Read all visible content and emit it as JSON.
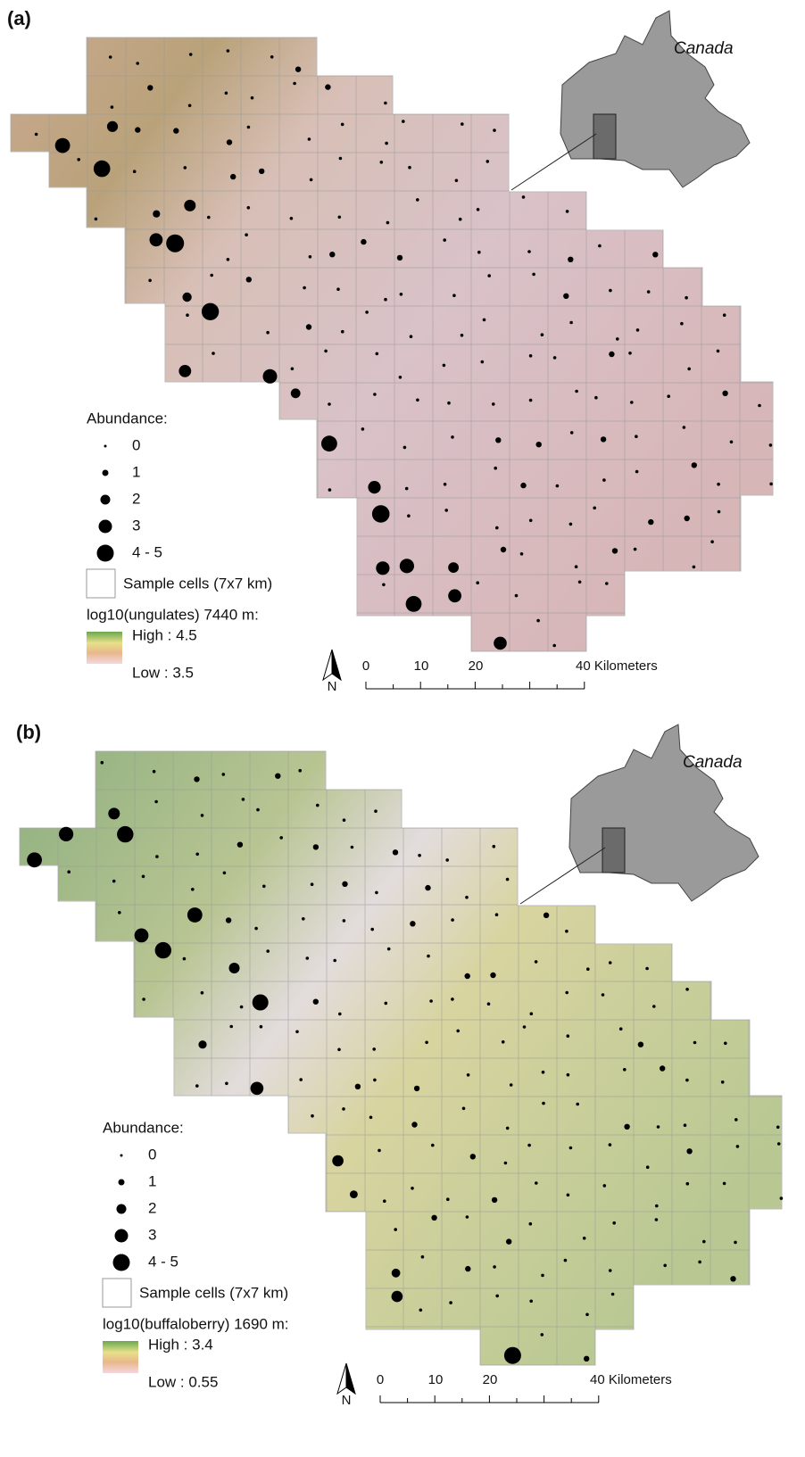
{
  "panels": [
    {
      "label": "(a)",
      "inset_label": "Canada",
      "north": "N",
      "scale": [
        "0",
        "10",
        "20",
        "40 Kilometers"
      ],
      "legend": {
        "title": "Abundance:",
        "classes": [
          "0",
          "1",
          "2",
          "3",
          "4 - 5"
        ],
        "cells": "Sample cells (7x7 km)",
        "raster_title": "log10(ungulates) 7440 m:",
        "high": "High : 4.5",
        "low": "Low : 3.5"
      }
    },
    {
      "label": "(b)",
      "inset_label": "Canada",
      "north": "N",
      "scale": [
        "0",
        "10",
        "20",
        "40 Kilometers"
      ],
      "legend": {
        "title": "Abundance:",
        "classes": [
          "0",
          "1",
          "2",
          "3",
          "4 - 5"
        ],
        "cells": "Sample cells (7x7 km)",
        "raster_title": "log10(buffaloberry) 1690 m:",
        "high": "High : 3.4",
        "low": "Low : 0.55"
      }
    }
  ]
}
